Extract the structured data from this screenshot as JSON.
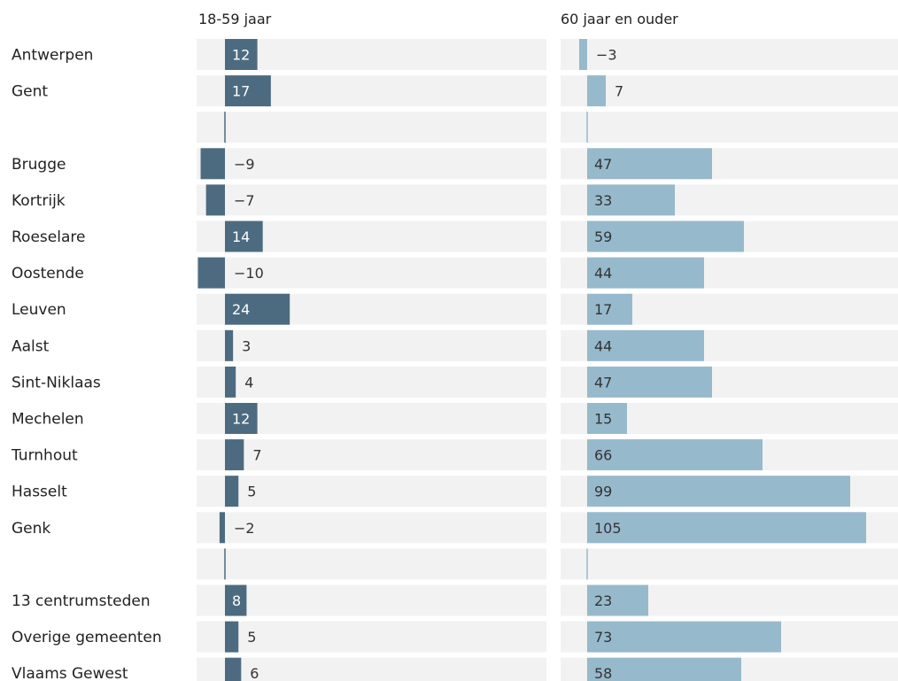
{
  "chart_data": {
    "type": "bar",
    "orientation": "horizontal",
    "categories": [
      "Antwerpen",
      "Gent",
      "",
      "Brugge",
      "Kortrijk",
      "Roeselare",
      "Oostende",
      "Leuven",
      "Aalst",
      "Sint-Niklaas",
      "Mechelen",
      "Turnhout",
      "Hasselt",
      "Genk",
      "",
      "13 centrumsteden",
      "Overige gemeenten",
      "Vlaams Gewest"
    ],
    "series": [
      {
        "name": "18-59 jaar",
        "color": "#4d6b80",
        "values": [
          12,
          17,
          null,
          -9,
          -7,
          14,
          -10,
          24,
          3,
          4,
          12,
          7,
          5,
          -2,
          null,
          8,
          5,
          6
        ],
        "labels": [
          "12",
          "17",
          "",
          "−9",
          "−7",
          "14",
          "−10",
          "24",
          "3",
          "4",
          "12",
          "7",
          "5",
          "−2",
          "",
          "8",
          "5",
          "6"
        ],
        "xlim": [
          -10,
          120
        ]
      },
      {
        "name": "60 jaar en ouder",
        "color": "#97b9cc",
        "values": [
          -3,
          7,
          null,
          47,
          33,
          59,
          44,
          17,
          44,
          47,
          15,
          66,
          99,
          105,
          null,
          23,
          73,
          58
        ],
        "labels": [
          "−3",
          "7",
          "",
          "47",
          "33",
          "59",
          "44",
          "17",
          "44",
          "47",
          "15",
          "66",
          "99",
          "105",
          "",
          "23",
          "73",
          "58"
        ],
        "xlim": [
          -3,
          120
        ]
      }
    ],
    "grid": false,
    "legend": "none"
  }
}
